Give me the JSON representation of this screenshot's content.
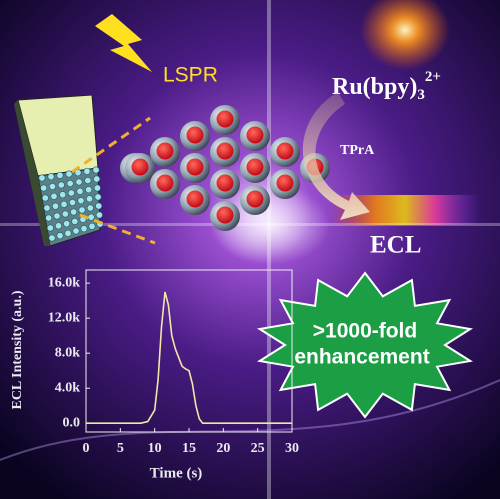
{
  "labels": {
    "lspr": "LSPR",
    "ru": "Ru(bpy)",
    "ru_sub": "3",
    "ru_sup": "2+",
    "tpra": "TPrA",
    "ecl": "ECL",
    "burst_line1": ">1000-fold",
    "burst_line2": "enhancement"
  },
  "chart_data": {
    "type": "line",
    "x_label": "Time (s)",
    "y_label": "ECL Intensity (a.u.)",
    "x": [
      0,
      5,
      8,
      9,
      10,
      10.5,
      11,
      11.5,
      12,
      12.5,
      13,
      13.5,
      14,
      14.5,
      15,
      15.5,
      16,
      16.5,
      17,
      20,
      25,
      30
    ],
    "series": [
      {
        "name": "ECL",
        "color": "#f2e7a6",
        "values": [
          0,
          0,
          0,
          200,
          1500,
          5000,
          11000,
          15000,
          13500,
          10000,
          8500,
          7500,
          6500,
          6200,
          6000,
          4500,
          2000,
          500,
          0,
          0,
          0,
          0
        ]
      }
    ],
    "xlim": [
      0,
      30
    ],
    "xticks": [
      0,
      5,
      10,
      15,
      20,
      25,
      30
    ],
    "ylim": [
      -1000,
      17500
    ],
    "yticks": [
      {
        "value": 0,
        "label": "0.0"
      },
      {
        "value": 4000,
        "label": "4.0k"
      },
      {
        "value": 8000,
        "label": "8.0k"
      },
      {
        "value": 12000,
        "label": "12.0k"
      },
      {
        "value": 16000,
        "label": "16.0k"
      }
    ]
  }
}
